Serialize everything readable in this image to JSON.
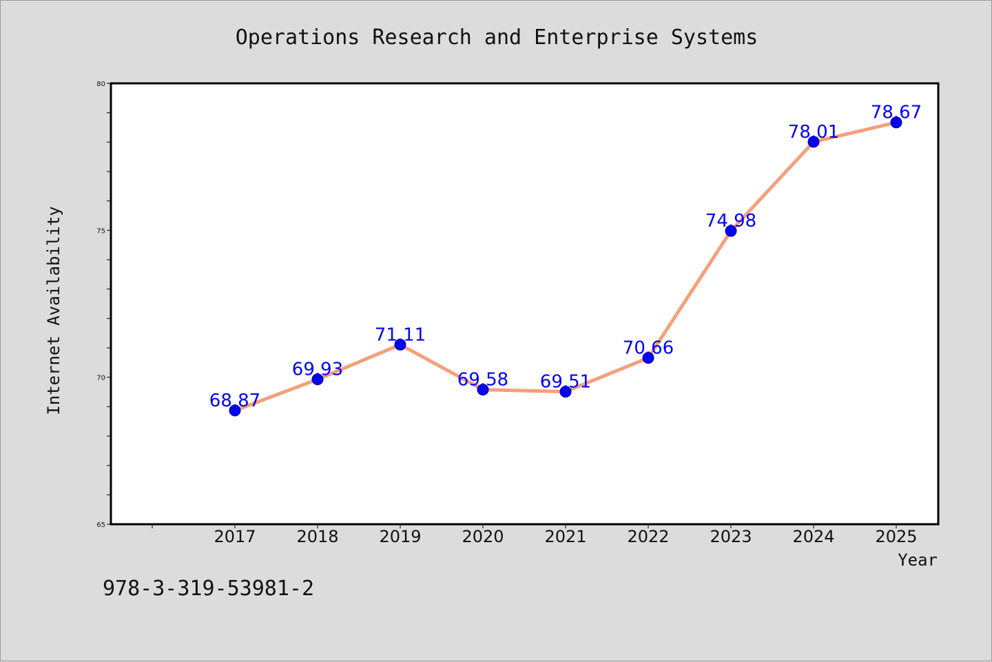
{
  "chart_data": {
    "type": "line",
    "title": "Operations Research and Enterprise Systems",
    "xlabel": "Year",
    "ylabel": "Internet Availability",
    "categories": [
      "2017",
      "2018",
      "2019",
      "2020",
      "2021",
      "2022",
      "2023",
      "2024",
      "2025"
    ],
    "series": [
      {
        "values": [
          68.87,
          69.93,
          71.11,
          69.58,
          69.51,
          70.66,
          74.98,
          78.01,
          78.67
        ],
        "data_labels": [
          "68.87",
          "69.93",
          "71.11",
          "69.58",
          "69.51",
          "70.66",
          "74.98",
          "78.01",
          "78.67"
        ],
        "line_color": "#f4a07c",
        "marker_color": "#0000ff"
      }
    ],
    "ylim": [
      65,
      80
    ],
    "yticks": [
      "65",
      "70",
      "75",
      "80"
    ],
    "grid": false,
    "legend": "none"
  },
  "footnote": "978-3-319-53981-2",
  "colors": {
    "background": "#dcdcdc",
    "plot_background": "#ffffff",
    "line": "#f4a07c",
    "marker": "#0000ff",
    "data_label": "#0000ff"
  }
}
